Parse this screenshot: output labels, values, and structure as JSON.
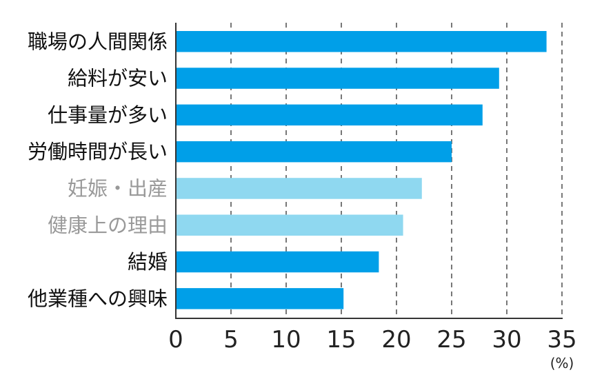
{
  "chart_data": {
    "type": "bar",
    "orientation": "horizontal",
    "categories": [
      "職場の人間関係",
      "給料が安い",
      "仕事量が多い",
      "労働時間が長い",
      "妊娠・出産",
      "健康上の理由",
      "結婚",
      "他業種への興味"
    ],
    "values": [
      33.6,
      29.3,
      27.8,
      25.0,
      22.3,
      20.6,
      18.4,
      15.2
    ],
    "highlight": [
      true,
      true,
      true,
      true,
      false,
      false,
      true,
      true
    ],
    "colors": {
      "highlight": "#009fe8",
      "muted": "#8fd8f0",
      "label_dark": "#111111",
      "label_muted": "#999999",
      "grid": "#777777"
    },
    "xlim": [
      0,
      35
    ],
    "xticks": [
      "0",
      "5",
      "10",
      "15",
      "20",
      "25",
      "30",
      "35"
    ],
    "xunit": "(%)",
    "grid": "vertical dashed",
    "title": "",
    "xlabel": "",
    "ylabel": ""
  }
}
